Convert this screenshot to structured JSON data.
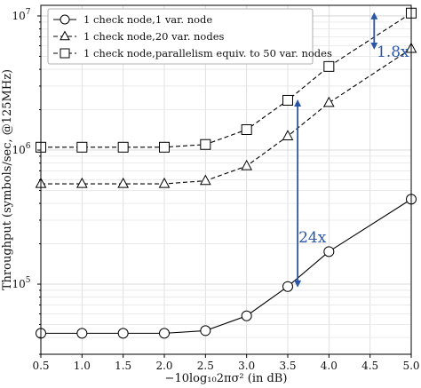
{
  "chart_data": {
    "type": "line",
    "title": "",
    "xlabel": "−10log₁₀2πσ² (in dB)",
    "ylabel": "Throughput (symbols/sec, @125MHz)",
    "x": [
      0.5,
      1.0,
      1.5,
      2.0,
      2.5,
      3.0,
      3.5,
      4.0,
      5.0
    ],
    "xticks": [
      "0.5",
      "1.0",
      "1.5",
      "2.0",
      "2.5",
      "3.0",
      "3.5",
      "4.0",
      "4.5",
      "5.0"
    ],
    "xlim": [
      0.5,
      5.0
    ],
    "yscale": "log",
    "ylim": [
      30000,
      12000000
    ],
    "yticks": [
      {
        "value": 100000,
        "base": "10",
        "exp": "5"
      },
      {
        "value": 1000000,
        "base": "10",
        "exp": "6"
      },
      {
        "value": 10000000,
        "base": "10",
        "exp": "7"
      }
    ],
    "grid": true,
    "legend_position": "top-left",
    "series": [
      {
        "name": "1 check node,1 var. node",
        "marker": "circle",
        "linestyle": "solid",
        "values": [
          43000,
          43000,
          43000,
          43000,
          45000,
          58000,
          96000,
          175000,
          430000
        ]
      },
      {
        "name": "1 check node,20 var. nodes",
        "marker": "triangle",
        "linestyle": "dashed",
        "values": [
          560000,
          560000,
          560000,
          560000,
          590000,
          760000,
          1270000,
          2250000,
          5700000
        ]
      },
      {
        "name": "1 check node,parallelism equiv. to 50 var. nodes",
        "marker": "square",
        "linestyle": "dashed",
        "values": [
          1050000,
          1050000,
          1050000,
          1050000,
          1100000,
          1420000,
          2350000,
          4200000,
          10500000
        ]
      }
    ],
    "annotations": [
      {
        "text": "24x",
        "x": 3.62,
        "y_from": 2350000,
        "y_to": 96000,
        "color": "#2a56a6"
      },
      {
        "text": "1.8x",
        "x": 4.55,
        "y_from": 10500000,
        "y_to": 5700000,
        "color": "#2a56a6"
      }
    ]
  }
}
